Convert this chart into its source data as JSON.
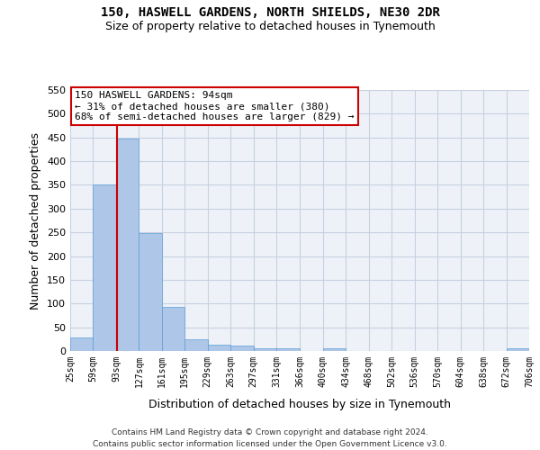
{
  "title1": "150, HASWELL GARDENS, NORTH SHIELDS, NE30 2DR",
  "title2": "Size of property relative to detached houses in Tynemouth",
  "xlabel": "Distribution of detached houses by size in Tynemouth",
  "ylabel": "Number of detached properties",
  "footnote1": "Contains HM Land Registry data © Crown copyright and database right 2024.",
  "footnote2": "Contains public sector information licensed under the Open Government Licence v3.0.",
  "annotation_line1": "150 HASWELL GARDENS: 94sqm",
  "annotation_line2": "← 31% of detached houses are smaller (380)",
  "annotation_line3": "68% of semi-detached houses are larger (829) →",
  "bar_color": "#aec6e8",
  "bar_edge_color": "#5a9fd4",
  "vline_color": "#cc0000",
  "vline_x": 94,
  "bin_edges": [
    25,
    59,
    93,
    127,
    161,
    195,
    229,
    263,
    297,
    331,
    366,
    400,
    434,
    468,
    502,
    536,
    570,
    604,
    638,
    672,
    706
  ],
  "bar_heights": [
    28,
    350,
    447,
    248,
    93,
    25,
    14,
    11,
    6,
    6,
    0,
    5,
    0,
    0,
    0,
    0,
    0,
    0,
    0,
    5
  ],
  "ylim": [
    0,
    550
  ],
  "yticks": [
    0,
    50,
    100,
    150,
    200,
    250,
    300,
    350,
    400,
    450,
    500,
    550
  ],
  "grid_color": "#c8d0e0",
  "bg_color": "#eef2f8",
  "fig_bg": "#ffffff",
  "annotation_box_color": "#ffffff",
  "annotation_box_edge": "#cc0000",
  "title1_fontsize": 10,
  "title2_fontsize": 9,
  "ylabel_fontsize": 9,
  "xlabel_fontsize": 9,
  "footnote_fontsize": 6.5,
  "annot_fontsize": 8
}
